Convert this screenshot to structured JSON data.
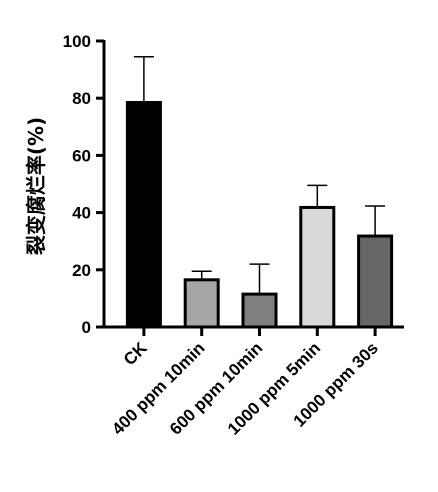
{
  "chart_data": {
    "type": "bar",
    "title": "",
    "xlabel": "",
    "ylabel": "裂变腐烂率(%)",
    "ylim": [
      0,
      100
    ],
    "yticks": [
      0,
      20,
      40,
      60,
      80,
      100
    ],
    "grid": false,
    "categories": [
      "CK",
      "400 ppm 10min",
      "600 ppm 10min",
      "1000 ppm 5min",
      "1000 ppm 30s"
    ],
    "values": [
      78.5,
      16.5,
      11.5,
      41.8,
      31.8
    ],
    "errors": [
      16,
      3,
      10.5,
      7.7,
      10.5
    ],
    "colors": [
      "#000000",
      "#a6a6a6",
      "#7f7f7f",
      "#d9d9d9",
      "#666666"
    ]
  }
}
